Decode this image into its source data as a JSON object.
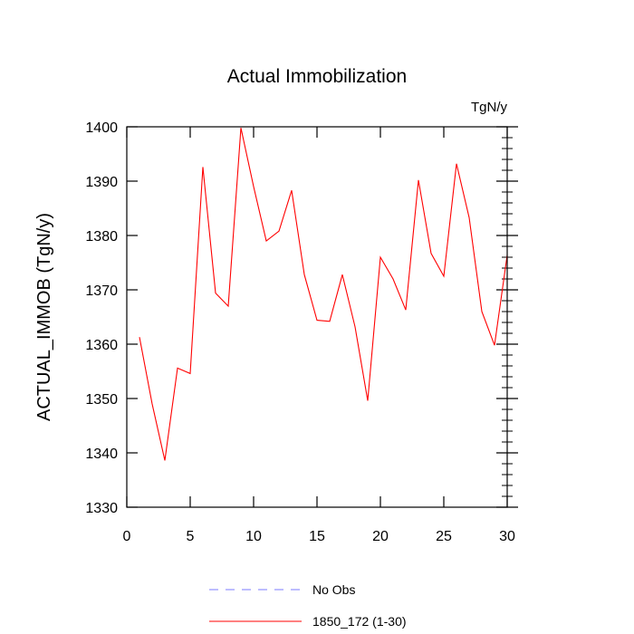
{
  "chart_data": {
    "type": "line",
    "title": "Actual Immobilization",
    "units": "TgN/y",
    "ylabel": "ACTUAL_IMMOB  (TgN/y)",
    "xlabel": "",
    "xlim": [
      0,
      30
    ],
    "ylim": [
      1330,
      1400
    ],
    "xticks": [
      0,
      5,
      10,
      15,
      20,
      25,
      30
    ],
    "yticks": [
      1330,
      1340,
      1350,
      1360,
      1370,
      1380,
      1390,
      1400
    ],
    "x": [
      1,
      2,
      3,
      4,
      5,
      6,
      7,
      8,
      9,
      10,
      11,
      12,
      13,
      14,
      15,
      16,
      17,
      18,
      19,
      20,
      21,
      22,
      23,
      24,
      25,
      26,
      27,
      28,
      29,
      30
    ],
    "series": [
      {
        "name": "1850_172 (1-30)",
        "color": "#ff0000",
        "values": [
          1361.3,
          1349.0,
          1338.6,
          1355.6,
          1354.6,
          1392.6,
          1369.4,
          1367.0,
          1399.8,
          1389.0,
          1379.0,
          1380.8,
          1388.3,
          1372.8,
          1364.4,
          1364.2,
          1372.8,
          1363.2,
          1349.6,
          1376.0,
          1372.0,
          1366.3,
          1390.2,
          1376.7,
          1372.5,
          1393.2,
          1383.3,
          1366.0,
          1359.8,
          1376.4
        ]
      }
    ],
    "legend": [
      {
        "label": "No Obs",
        "color": "#7b7bff",
        "style": "dashed"
      },
      {
        "label": "1850_172 (1-30)",
        "color": "#ff0000",
        "style": "solid"
      }
    ],
    "legend_position": "bottom-center"
  }
}
